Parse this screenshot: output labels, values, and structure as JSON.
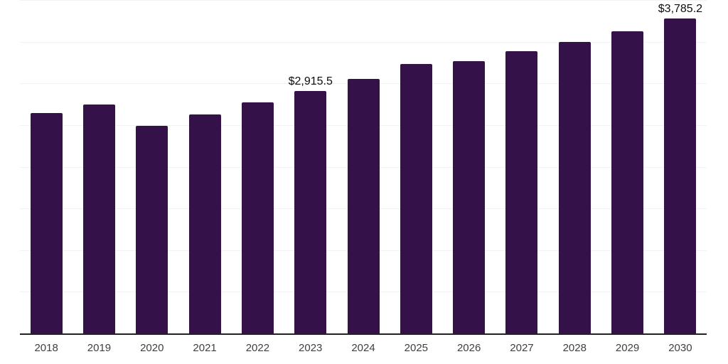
{
  "chart_data": {
    "type": "bar",
    "title": "",
    "xlabel": "",
    "ylabel": "",
    "categories": [
      "2018",
      "2019",
      "2020",
      "2021",
      "2022",
      "2023",
      "2024",
      "2025",
      "2026",
      "2027",
      "2028",
      "2029",
      "2030"
    ],
    "values": [
      2650,
      2758,
      2503,
      2636,
      2779,
      2915.5,
      3063,
      3242,
      3276,
      3398,
      3504,
      3632,
      3785.2
    ],
    "data_labels": [
      null,
      null,
      null,
      null,
      null,
      "$2,915.5",
      null,
      null,
      null,
      null,
      null,
      null,
      "$3,785.2"
    ],
    "ylim": [
      0,
      4000
    ],
    "gridline_step": 500,
    "grid": "horizontal",
    "legend": "none",
    "y_axis_labels_visible": false,
    "colors": {
      "bar": "#341149",
      "gridline": "#f2f2f3",
      "axis_line": "#222222",
      "tick_label": "#404040",
      "data_label": "#0d0d0d",
      "background": "#ffffff"
    }
  }
}
